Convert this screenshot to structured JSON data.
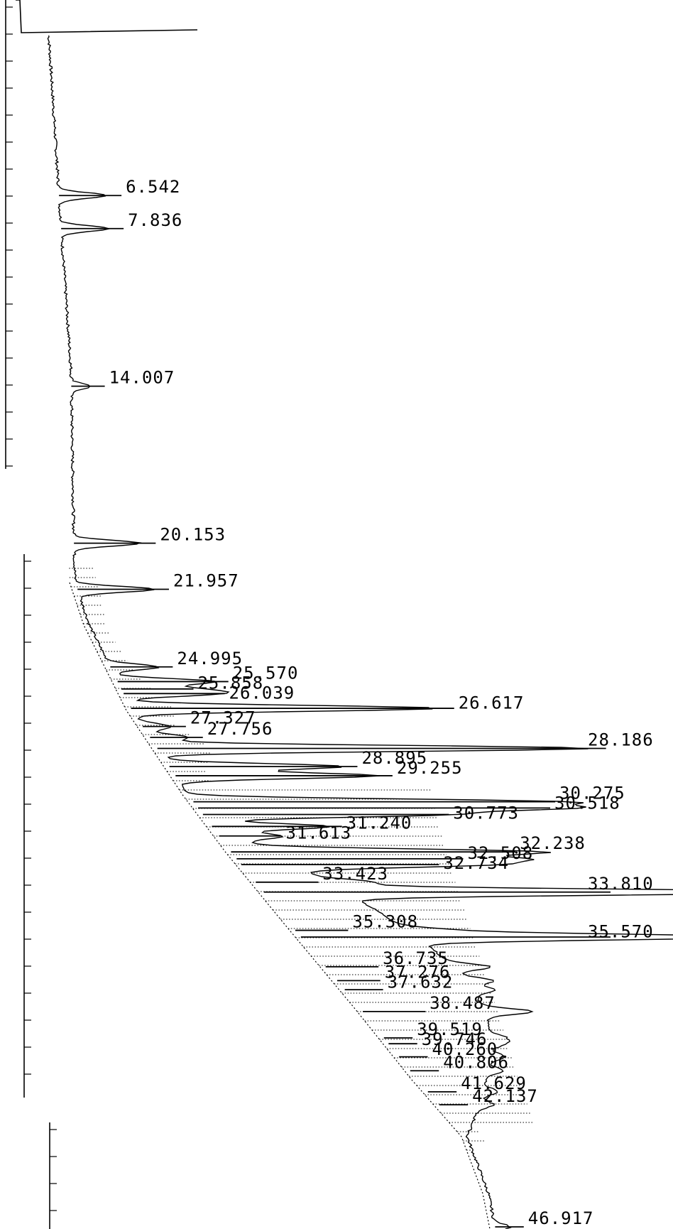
{
  "chart_data": {
    "type": "line",
    "orientation": "vertical-time-axis",
    "title": "",
    "xlabel": "",
    "ylabel": "",
    "colors": {
      "trace": "#000000",
      "baseline_hatch": "#000000",
      "background": "#ffffff"
    },
    "axis_segments": 3,
    "time_range": [
      0,
      47
    ],
    "peaks": [
      {
        "label": "6.542",
        "rt": 6.542,
        "height": 0.1
      },
      {
        "label": "7.836",
        "rt": 7.836,
        "height": 0.1
      },
      {
        "label": "14.007",
        "rt": 14.007,
        "height": 0.04
      },
      {
        "label": "20.153",
        "rt": 20.153,
        "height": 0.14
      },
      {
        "label": "21.957",
        "rt": 21.957,
        "height": 0.16
      },
      {
        "label": "24.995",
        "rt": 24.995,
        "height": 0.1
      },
      {
        "label": "25.570",
        "rt": 25.57,
        "height": 0.2
      },
      {
        "label": "25.858",
        "rt": 25.858,
        "height": 0.12
      },
      {
        "label": "26.039",
        "rt": 26.039,
        "height": 0.18
      },
      {
        "label": "26.617",
        "rt": 26.617,
        "height": 0.64
      },
      {
        "label": "27.327",
        "rt": 27.327,
        "height": 0.06
      },
      {
        "label": "27.756",
        "rt": 27.756,
        "height": 0.08
      },
      {
        "label": "28.186",
        "rt": 28.186,
        "height": 0.9
      },
      {
        "label": "28.895",
        "rt": 28.895,
        "height": 0.36
      },
      {
        "label": "29.255",
        "rt": 29.255,
        "height": 0.42
      },
      {
        "label": "30.275",
        "rt": 30.275,
        "height": 0.72
      },
      {
        "label": "30.518",
        "rt": 30.518,
        "height": 0.7
      },
      {
        "label": "30.773",
        "rt": 30.773,
        "height": 0.48
      },
      {
        "label": "31.240",
        "rt": 31.24,
        "height": 0.24
      },
      {
        "label": "31.613",
        "rt": 31.613,
        "height": 0.1
      },
      {
        "label": "32.238",
        "rt": 32.238,
        "height": 0.56
      },
      {
        "label": "32.508",
        "rt": 32.508,
        "height": 0.44
      },
      {
        "label": "32.734",
        "rt": 32.734,
        "height": 0.38
      },
      {
        "label": "33.423",
        "rt": 33.423,
        "height": 0.1
      },
      {
        "label": "33.810",
        "rt": 33.81,
        "height": 1.0
      },
      {
        "label": "35.308",
        "rt": 35.308,
        "height": 0.08
      },
      {
        "label": "35.570",
        "rt": 35.57,
        "height": 0.68
      },
      {
        "label": "36.735",
        "rt": 36.735,
        "height": 0.08
      },
      {
        "label": "37.276",
        "rt": 37.276,
        "height": 0.06
      },
      {
        "label": "37.632",
        "rt": 37.632,
        "height": 0.05
      },
      {
        "label": "38.487",
        "rt": 38.487,
        "height": 0.1
      },
      {
        "label": "39.519",
        "rt": 39.519,
        "height": 0.03
      },
      {
        "label": "39.746",
        "rt": 39.746,
        "height": 0.03
      },
      {
        "label": "40.260",
        "rt": 40.26,
        "height": 0.03
      },
      {
        "label": "40.806",
        "rt": 40.806,
        "height": 0.03
      },
      {
        "label": "41.629",
        "rt": 41.629,
        "height": 0.03
      },
      {
        "label": "42.137",
        "rt": 42.137,
        "height": 0.03
      },
      {
        "label": "46.917",
        "rt": 46.917,
        "height": 0.03
      }
    ]
  }
}
